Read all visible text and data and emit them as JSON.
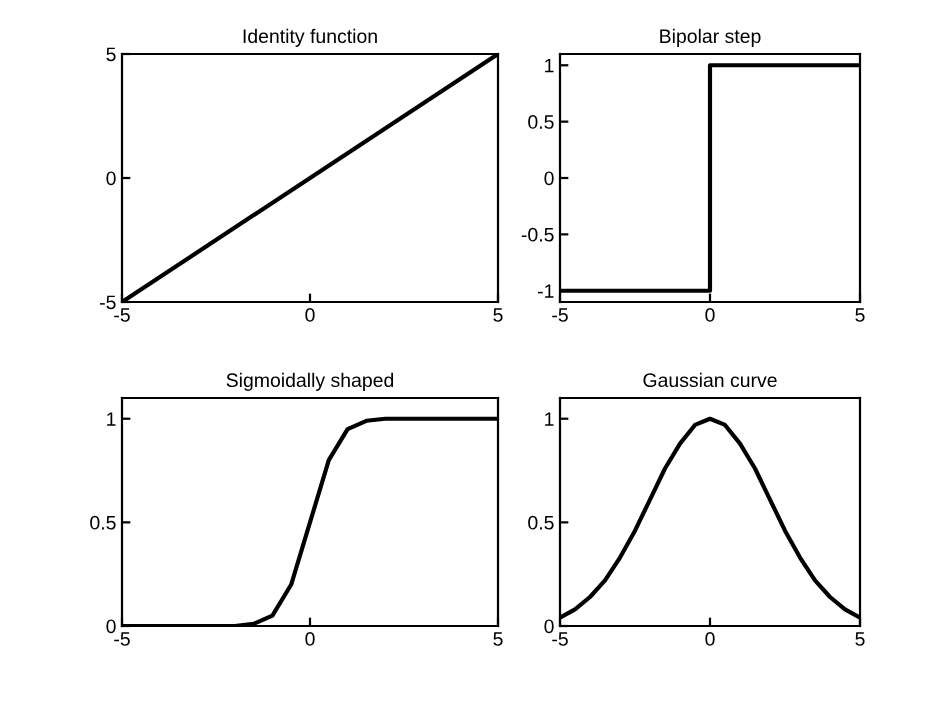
{
  "chart_data": [
    {
      "type": "line",
      "title": "Identity function",
      "x": [
        -5,
        5
      ],
      "series": [
        {
          "color": "#000000",
          "values": [
            -5,
            5
          ]
        }
      ],
      "xlim": [
        -5,
        5
      ],
      "ylim": [
        -5,
        5
      ],
      "xticks": [
        -5,
        0,
        5
      ],
      "yticks": [
        -5,
        0,
        5
      ],
      "grid": false,
      "legend": false
    },
    {
      "type": "line",
      "title": "Bipolar step",
      "x": [
        -5,
        0,
        0,
        5
      ],
      "series": [
        {
          "color": "#000000",
          "values": [
            -1,
            -1,
            1,
            1
          ]
        }
      ],
      "xlim": [
        -5,
        5
      ],
      "ylim": [
        -1.1,
        1.1
      ],
      "xticks": [
        -5,
        0,
        5
      ],
      "yticks": [
        -1,
        -0.5,
        0,
        0.5,
        1
      ],
      "grid": false,
      "legend": false
    },
    {
      "type": "line",
      "title": "Sigmoidally shaped",
      "x": [
        -5,
        -4,
        -3,
        -2,
        -1.5,
        -1,
        -0.5,
        0,
        0.5,
        1,
        1.5,
        2,
        3,
        4,
        5
      ],
      "series": [
        {
          "color": "#000000",
          "values": [
            0,
            0,
            0,
            0,
            0.01,
            0.05,
            0.2,
            0.5,
            0.8,
            0.95,
            0.99,
            1,
            1,
            1,
            1
          ]
        }
      ],
      "xlim": [
        -5,
        5
      ],
      "ylim": [
        0,
        1.1
      ],
      "xticks": [
        -5,
        0,
        5
      ],
      "yticks": [
        0,
        0.5,
        1
      ],
      "grid": false,
      "legend": false
    },
    {
      "type": "line",
      "title": "Gaussian curve",
      "x": [
        -5,
        -4.5,
        -4,
        -3.5,
        -3,
        -2.5,
        -2,
        -1.5,
        -1,
        -0.5,
        0,
        0.5,
        1,
        1.5,
        2,
        2.5,
        3,
        3.5,
        4,
        4.5,
        5
      ],
      "series": [
        {
          "color": "#000000",
          "values": [
            0.04,
            0.08,
            0.14,
            0.22,
            0.33,
            0.46,
            0.61,
            0.76,
            0.88,
            0.97,
            1,
            0.97,
            0.88,
            0.76,
            0.61,
            0.46,
            0.33,
            0.22,
            0.14,
            0.08,
            0.04
          ]
        }
      ],
      "xlim": [
        -5,
        5
      ],
      "ylim": [
        0,
        1.1
      ],
      "xticks": [
        -5,
        0,
        5
      ],
      "yticks": [
        0,
        0.5,
        1
      ],
      "grid": false,
      "legend": false
    }
  ]
}
